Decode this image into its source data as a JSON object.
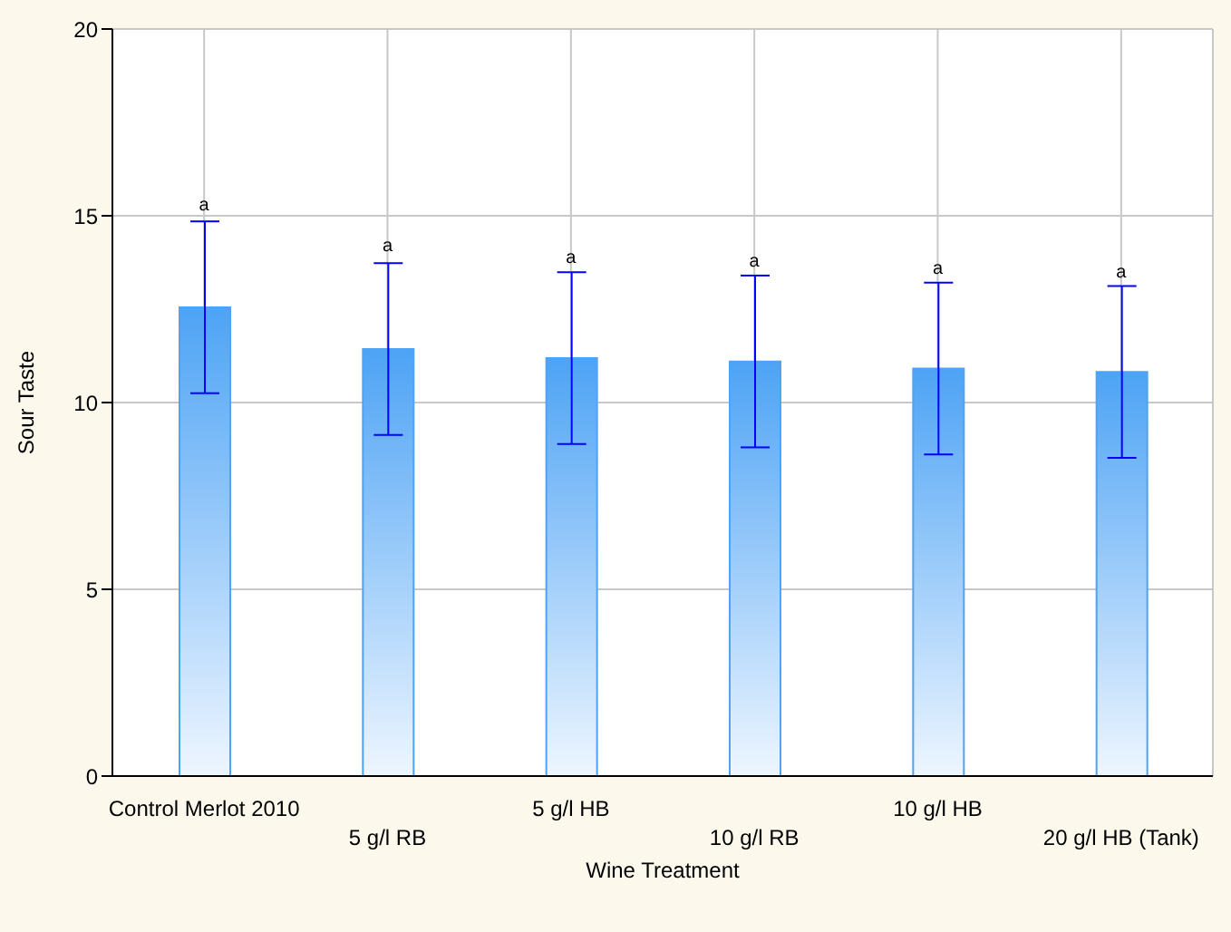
{
  "chart_data": {
    "type": "bar",
    "xlabel": "Wine Treatment",
    "ylabel": "Sour Taste",
    "categories": [
      "Control Merlot 2010",
      "5 g/l RB",
      "5 g/l HB",
      "10 g/l RB",
      "10 g/l HB",
      "20 g/l HB (Tank)"
    ],
    "values": [
      12.55,
      11.43,
      11.19,
      11.1,
      10.91,
      10.82
    ],
    "errors": [
      2.3,
      2.3,
      2.3,
      2.3,
      2.3,
      2.3
    ],
    "color": "#4da3f5",
    "ylim": [
      0,
      20
    ],
    "yticks": [
      0,
      5,
      10,
      15,
      20
    ],
    "grid": true,
    "annotations": [
      {
        "text": "a",
        "x": "Control Merlot 2010",
        "y": 14.9
      },
      {
        "text": "a",
        "x": "5 g/l RB",
        "y": 13.8
      },
      {
        "text": "a",
        "x": "5 g/l HB",
        "y": 13.5
      },
      {
        "text": "a",
        "x": "10 g/l RB",
        "y": 13.4
      },
      {
        "text": "a",
        "x": "10 g/l HB",
        "y": 13.2
      },
      {
        "text": "a",
        "x": "20 g/l HB (Tank)",
        "y": 13.1
      }
    ]
  }
}
